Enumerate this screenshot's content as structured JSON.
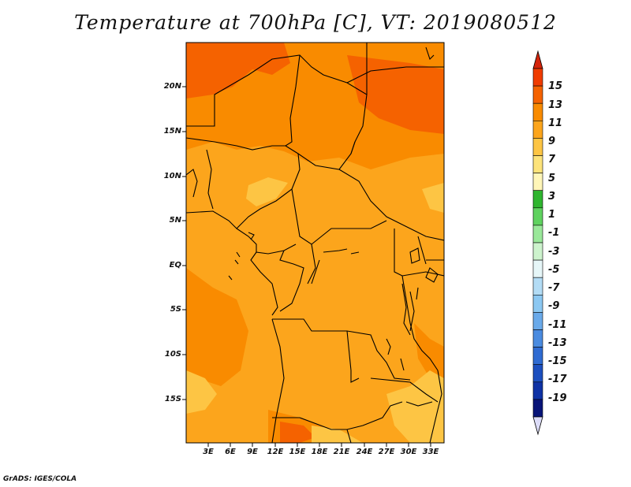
{
  "title": "Temperature at 700hPa [C], VT: 2019080512",
  "credit": "GrADS: IGES/COLA",
  "map": {
    "lat_labels": [
      "20N",
      "15N",
      "10N",
      "5N",
      "EQ",
      "5S",
      "10S",
      "15S"
    ],
    "lon_labels": [
      "3E",
      "6E",
      "9E",
      "12E",
      "15E",
      "18E",
      "21E",
      "24E",
      "27E",
      "30E",
      "33E"
    ]
  },
  "colorbar": {
    "labels": [
      "15",
      "13",
      "11",
      "9",
      "7",
      "5",
      "3",
      "1",
      "-1",
      "-3",
      "-5",
      "-7",
      "-9",
      "-11",
      "-13",
      "-15",
      "-17",
      "-19"
    ],
    "colors": [
      "#f03c00",
      "#f56200",
      "#f98b00",
      "#fca51c",
      "#fdc544",
      "#fde37a",
      "#fff6b8",
      "#2fb52f",
      "#5fd25f",
      "#9ae89a",
      "#cdf3cd",
      "#e6f6f8",
      "#b3dcf5",
      "#8cc8f2",
      "#6aaaea",
      "#4a8be0",
      "#2f6bd2",
      "#1c4fbf",
      "#0f32a5",
      "#081478",
      "#dcdcf8"
    ],
    "top_arrow_color": "#d4240a",
    "bottom_arrow_color": "#dcdcf8"
  },
  "field_colors": {
    "dominant": "#fca51c",
    "warm": "#f98b00",
    "hot": "#f56200",
    "cool": "#fdc544"
  }
}
